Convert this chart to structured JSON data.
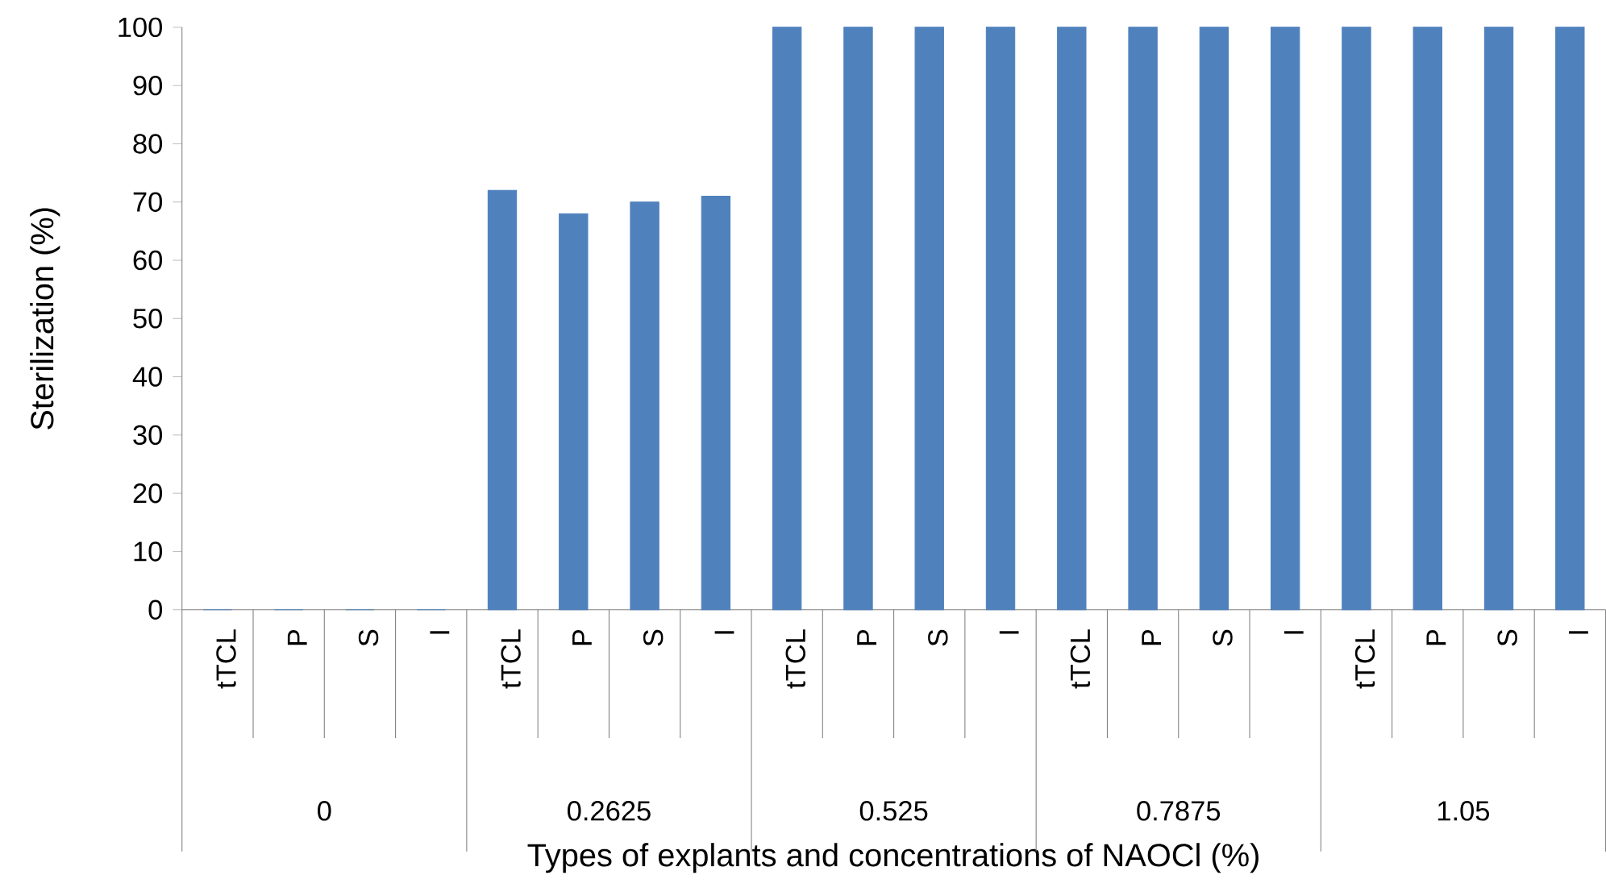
{
  "chart_data": {
    "type": "bar",
    "xlabel": "Types of explants and concentrations of NAOCl (%)",
    "ylabel": "Sterilization  (%)",
    "categories": [
      "tTCL",
      "P",
      "S",
      "I",
      "tTCL",
      "P",
      "S",
      "I",
      "tTCL",
      "P",
      "S",
      "I",
      "tTCL",
      "P",
      "S",
      "I",
      "tTCL",
      "P",
      "S",
      "I"
    ],
    "values": [
      0,
      0,
      0,
      0,
      72,
      68,
      70,
      71,
      100,
      100,
      100,
      100,
      100,
      100,
      100,
      100,
      100,
      100,
      100,
      100
    ],
    "color": "#4f81bd",
    "ylim": [
      0,
      100
    ],
    "yticks": [
      0,
      10,
      20,
      30,
      40,
      50,
      60,
      70,
      80,
      90,
      100
    ],
    "annotations": [
      "0",
      "0.2625",
      "0.525",
      "0.7875",
      "1.05"
    ]
  }
}
